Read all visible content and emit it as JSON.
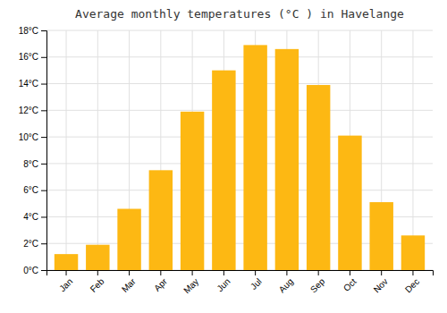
{
  "chart_data": {
    "type": "bar",
    "title": "Average monthly temperatures (°C ) in Havelange",
    "categories": [
      "Jan",
      "Feb",
      "Mar",
      "Apr",
      "May",
      "Jun",
      "Jul",
      "Aug",
      "Sep",
      "Oct",
      "Nov",
      "Dec"
    ],
    "values": [
      1.2,
      1.9,
      4.6,
      7.5,
      11.9,
      15.0,
      16.9,
      16.6,
      13.9,
      10.1,
      5.1,
      2.6
    ],
    "color": "#FDB813",
    "ylim": [
      0,
      18
    ],
    "yticks": [
      {
        "value": 0,
        "label": "0°C"
      },
      {
        "value": 2,
        "label": "2°C"
      },
      {
        "value": 4,
        "label": "4°C"
      },
      {
        "value": 6,
        "label": "6°C"
      },
      {
        "value": 8,
        "label": "8°C"
      },
      {
        "value": 10,
        "label": "10°C"
      },
      {
        "value": 12,
        "label": "12°C"
      },
      {
        "value": 14,
        "label": "14°C"
      },
      {
        "value": 16,
        "label": "16°C"
      },
      {
        "value": 18,
        "label": "18°C"
      }
    ],
    "grid": true
  }
}
